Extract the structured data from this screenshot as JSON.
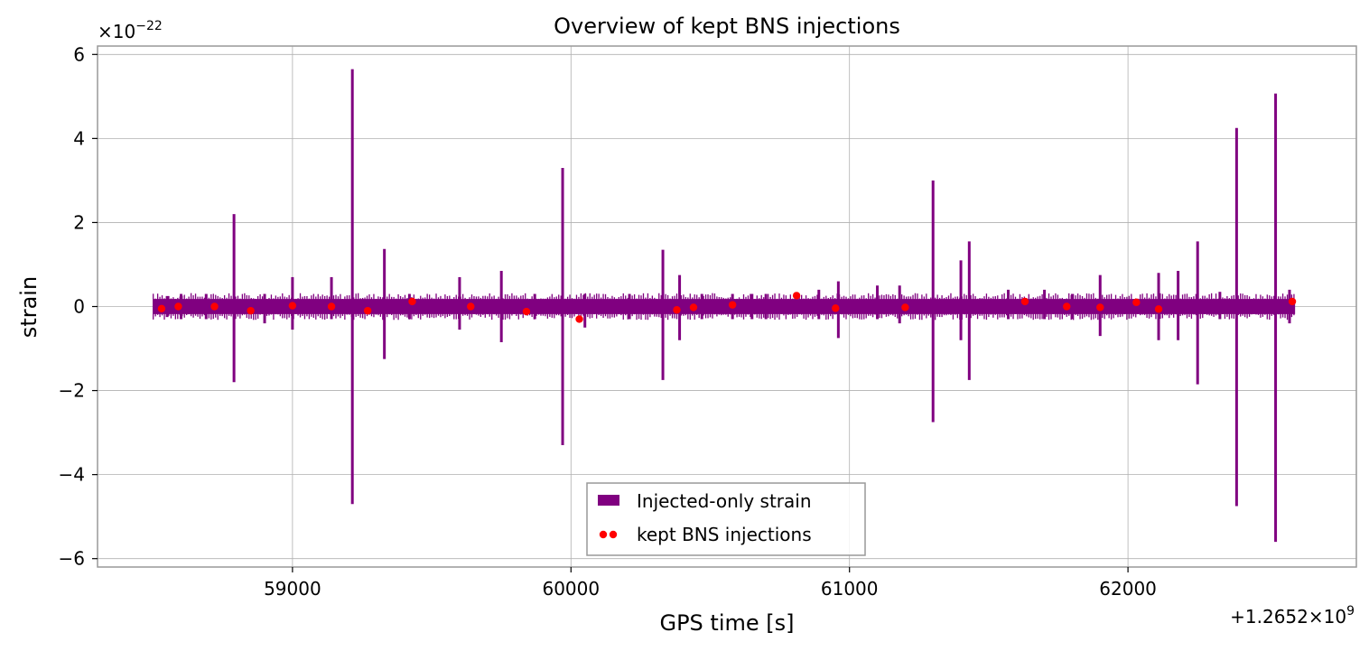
{
  "chart_data": {
    "type": "line",
    "title": "Overview of kept BNS injections",
    "xlabel": "GPS time [s]",
    "ylabel": "strain",
    "x_offset_label": "+1.2652×10^9",
    "y_multiplier_label": "×10^−22",
    "xlim": [
      58300,
      62820
    ],
    "ylim": [
      -6.2,
      6.2
    ],
    "x_ticks": [
      59000,
      60000,
      61000,
      62000
    ],
    "x_tick_labels": [
      "59000",
      "60000",
      "61000",
      "62000"
    ],
    "y_ticks": [
      -6,
      -4,
      -2,
      0,
      2,
      4,
      6
    ],
    "y_tick_labels": [
      "−6",
      "−4",
      "−2",
      "0",
      "2",
      "4",
      "6"
    ],
    "grid": true,
    "legend_position": "bottom-center",
    "series": [
      {
        "name": "Injected-only strain",
        "kind": "line",
        "color": "#800080",
        "baseline_band": [
          -0.18,
          0.18
        ],
        "x_range": [
          58500,
          62600
        ],
        "spikes": [
          {
            "x": 58550,
            "top": 0.25,
            "bottom": -0.25
          },
          {
            "x": 58600,
            "top": 0.3,
            "bottom": -0.3
          },
          {
            "x": 58690,
            "top": 0.3,
            "bottom": -0.3
          },
          {
            "x": 58790,
            "top": 2.2,
            "bottom": -1.8
          },
          {
            "x": 58900,
            "top": 0.3,
            "bottom": -0.4
          },
          {
            "x": 59000,
            "top": 0.7,
            "bottom": -0.55
          },
          {
            "x": 59140,
            "top": 0.7,
            "bottom": -0.3
          },
          {
            "x": 59215,
            "top": 5.65,
            "bottom": -4.7
          },
          {
            "x": 59330,
            "top": 1.37,
            "bottom": -1.25
          },
          {
            "x": 59420,
            "top": 0.3,
            "bottom": -0.3
          },
          {
            "x": 59600,
            "top": 0.7,
            "bottom": -0.55
          },
          {
            "x": 59750,
            "top": 0.85,
            "bottom": -0.85
          },
          {
            "x": 59870,
            "top": 0.3,
            "bottom": -0.3
          },
          {
            "x": 59970,
            "top": 3.3,
            "bottom": -3.3
          },
          {
            "x": 60050,
            "top": 0.3,
            "bottom": -0.5
          },
          {
            "x": 60210,
            "top": 0.3,
            "bottom": -0.3
          },
          {
            "x": 60330,
            "top": 1.35,
            "bottom": -1.75
          },
          {
            "x": 60390,
            "top": 0.75,
            "bottom": -0.8
          },
          {
            "x": 60470,
            "top": 0.3,
            "bottom": -0.3
          },
          {
            "x": 60580,
            "top": 0.3,
            "bottom": -0.3
          },
          {
            "x": 60650,
            "top": 0.3,
            "bottom": -0.3
          },
          {
            "x": 60700,
            "top": 0.3,
            "bottom": -0.3
          },
          {
            "x": 60890,
            "top": 0.4,
            "bottom": -0.3
          },
          {
            "x": 60960,
            "top": 0.6,
            "bottom": -0.75
          },
          {
            "x": 61100,
            "top": 0.5,
            "bottom": -0.3
          },
          {
            "x": 61180,
            "top": 0.5,
            "bottom": -0.4
          },
          {
            "x": 61300,
            "top": 3.0,
            "bottom": -2.75
          },
          {
            "x": 61400,
            "top": 1.1,
            "bottom": -0.8
          },
          {
            "x": 61430,
            "top": 1.55,
            "bottom": -1.75
          },
          {
            "x": 61570,
            "top": 0.4,
            "bottom": -0.3
          },
          {
            "x": 61700,
            "top": 0.4,
            "bottom": -0.3
          },
          {
            "x": 61800,
            "top": 0.3,
            "bottom": -0.3
          },
          {
            "x": 61900,
            "top": 0.75,
            "bottom": -0.7
          },
          {
            "x": 62110,
            "top": 0.8,
            "bottom": -0.8
          },
          {
            "x": 62180,
            "top": 0.85,
            "bottom": -0.8
          },
          {
            "x": 62250,
            "top": 1.55,
            "bottom": -1.85
          },
          {
            "x": 62330,
            "top": 0.35,
            "bottom": -0.3
          },
          {
            "x": 62390,
            "top": 4.25,
            "bottom": -4.75
          },
          {
            "x": 62530,
            "top": 5.07,
            "bottom": -5.6
          },
          {
            "x": 62580,
            "top": 0.4,
            "bottom": -0.4
          }
        ]
      },
      {
        "name": "kept BNS injections",
        "kind": "scatter",
        "color": "#ff0000",
        "points": [
          {
            "x": 58530,
            "y": -0.05
          },
          {
            "x": 58590,
            "y": 0.0
          },
          {
            "x": 58720,
            "y": 0.0
          },
          {
            "x": 58850,
            "y": -0.1
          },
          {
            "x": 59000,
            "y": 0.02
          },
          {
            "x": 59140,
            "y": 0.0
          },
          {
            "x": 59270,
            "y": -0.1
          },
          {
            "x": 59430,
            "y": 0.12
          },
          {
            "x": 59640,
            "y": 0.0
          },
          {
            "x": 59840,
            "y": -0.12
          },
          {
            "x": 60030,
            "y": -0.3
          },
          {
            "x": 60380,
            "y": -0.08
          },
          {
            "x": 60440,
            "y": -0.02
          },
          {
            "x": 60580,
            "y": 0.04
          },
          {
            "x": 60810,
            "y": 0.26
          },
          {
            "x": 60950,
            "y": -0.04
          },
          {
            "x": 61200,
            "y": -0.02
          },
          {
            "x": 61630,
            "y": 0.12
          },
          {
            "x": 61780,
            "y": 0.0
          },
          {
            "x": 61900,
            "y": -0.02
          },
          {
            "x": 62030,
            "y": 0.1
          },
          {
            "x": 62110,
            "y": -0.06
          },
          {
            "x": 62590,
            "y": 0.12
          }
        ]
      }
    ]
  }
}
